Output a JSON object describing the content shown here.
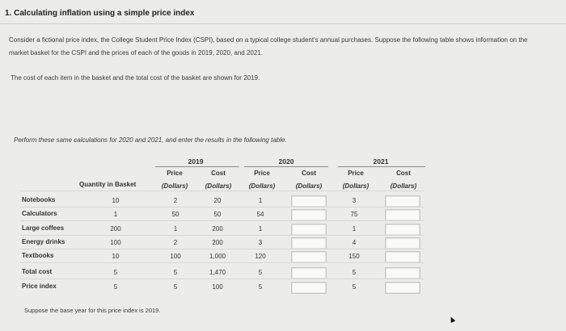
{
  "title": "1. Calculating inflation using a simple price index",
  "intro": "Consider a fictional price index, the College Student Price Index (CSPI), based on a typical college student's annual purchases. Suppose the following table shows information on the market basket for the CSPI and the prices of each of the goods in 2019, 2020, and 2021.",
  "cost_note": "The cost of each item in the basket and the total cost of the basket are shown for 2019.",
  "perform_note": "Perform these same calculations for 2020 and 2021, and enter the results in the following table.",
  "base_note": "Suppose the base year for this price index is 2019.",
  "table": {
    "years": [
      "2019",
      "2020",
      "2021"
    ],
    "quantity_header": "Quantity in Basket",
    "price_header": "Price",
    "cost_header": "Cost",
    "dollars": "(Dollars)",
    "rows": [
      {
        "label": "Notebooks",
        "qty": "10",
        "p2019": "2",
        "c2019": "20",
        "p2020": "1",
        "c2020": "",
        "p2021": "3",
        "c2021": ""
      },
      {
        "label": "Calculators",
        "qty": "1",
        "p2019": "50",
        "c2019": "50",
        "p2020": "54",
        "c2020": "",
        "p2021": "75",
        "c2021": ""
      },
      {
        "label": "Large coffees",
        "qty": "200",
        "p2019": "1",
        "c2019": "200",
        "p2020": "1",
        "c2020": "",
        "p2021": "1",
        "c2021": ""
      },
      {
        "label": "Energy drinks",
        "qty": "100",
        "p2019": "2",
        "c2019": "200",
        "p2020": "3",
        "c2020": "",
        "p2021": "4",
        "c2021": ""
      },
      {
        "label": "Textbooks",
        "qty": "10",
        "p2019": "100",
        "c2019": "1,000",
        "p2020": "120",
        "c2020": "",
        "p2021": "150",
        "c2021": ""
      }
    ],
    "total_row": {
      "label": "Total cost",
      "qty": "5",
      "p2019": "5",
      "c2019": "1,470",
      "p2020": "5",
      "c2020": "",
      "p2021": "5",
      "c2021": ""
    },
    "index_row": {
      "label": "Price index",
      "qty": "5",
      "p2019": "5",
      "c2019": "100",
      "p2020": "5",
      "c2020": "",
      "p2021": "5",
      "c2021": ""
    }
  }
}
